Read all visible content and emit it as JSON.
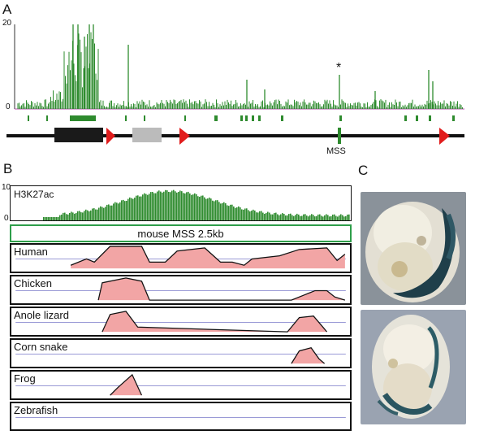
{
  "panel_a": {
    "letter": "A",
    "y_max_label": "20",
    "y_min_label": "0",
    "peak_marker": "*",
    "locus_label": "MSS",
    "colors": {
      "signal": "#2e8b2e",
      "baseline": "#b04fa8",
      "arrow": "#e11c1c",
      "dark_exon": "#1a1a1a",
      "grey_exon": "#bbbbbb"
    }
  },
  "panel_b": {
    "letter": "B",
    "track_title": "H3K27ac",
    "y_max_label": "10",
    "y_min_label": "0",
    "region_label": "mouse MSS 2.5kb",
    "species": [
      {
        "name": "Human"
      },
      {
        "name": "Chicken"
      },
      {
        "name": "Anole lizard"
      },
      {
        "name": "Corn snake"
      },
      {
        "name": "Frog"
      },
      {
        "name": "Zebrafish"
      }
    ],
    "colors": {
      "conservation_fill": "#f2a5a5",
      "threshold_line": "#9a9ad6",
      "region_box": "#2e9e4a"
    }
  },
  "panel_c": {
    "letter": "C"
  }
}
